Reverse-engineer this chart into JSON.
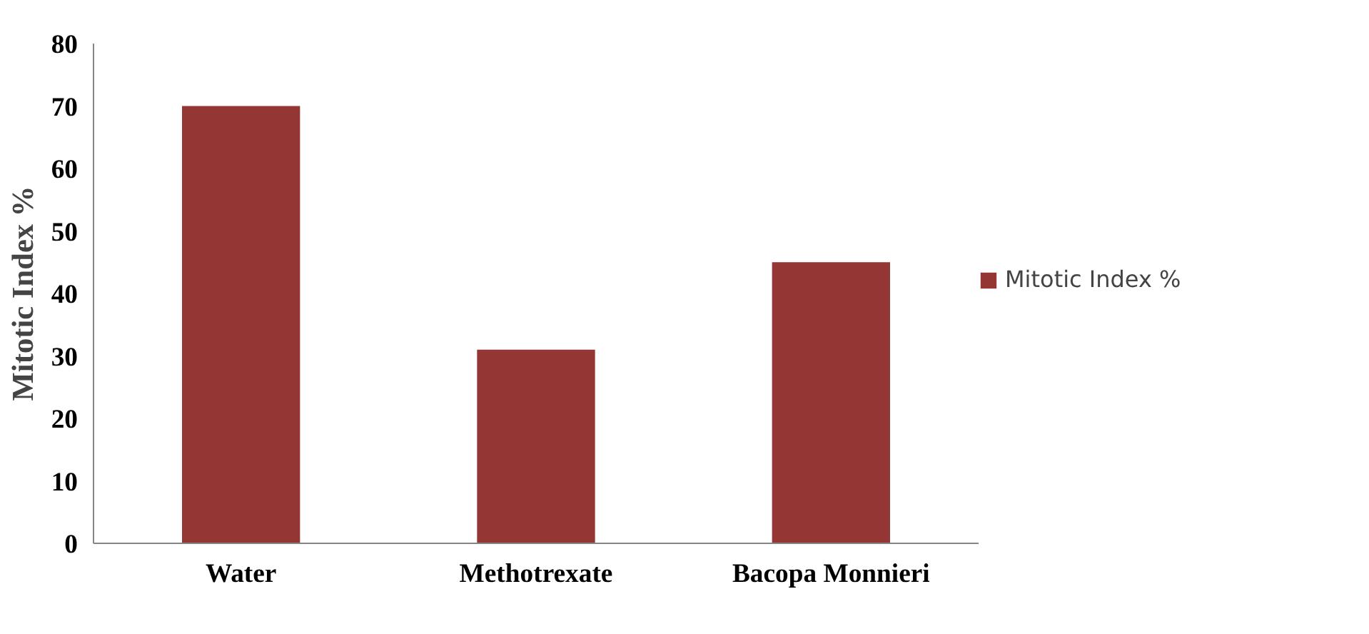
{
  "chart_data": {
    "type": "bar",
    "ylabel": "Mitotic Index %",
    "categories": [
      "Water",
      "Methotrexate",
      "Bacopa Monnieri"
    ],
    "series": [
      {
        "name": "Mitotic Index %",
        "color": "#943634",
        "values": [
          70,
          31,
          45
        ]
      }
    ],
    "ylim": [
      0,
      80
    ],
    "yticks": [
      0,
      10,
      20,
      30,
      40,
      50,
      60,
      70,
      80
    ],
    "grid": false,
    "legend": "right"
  }
}
